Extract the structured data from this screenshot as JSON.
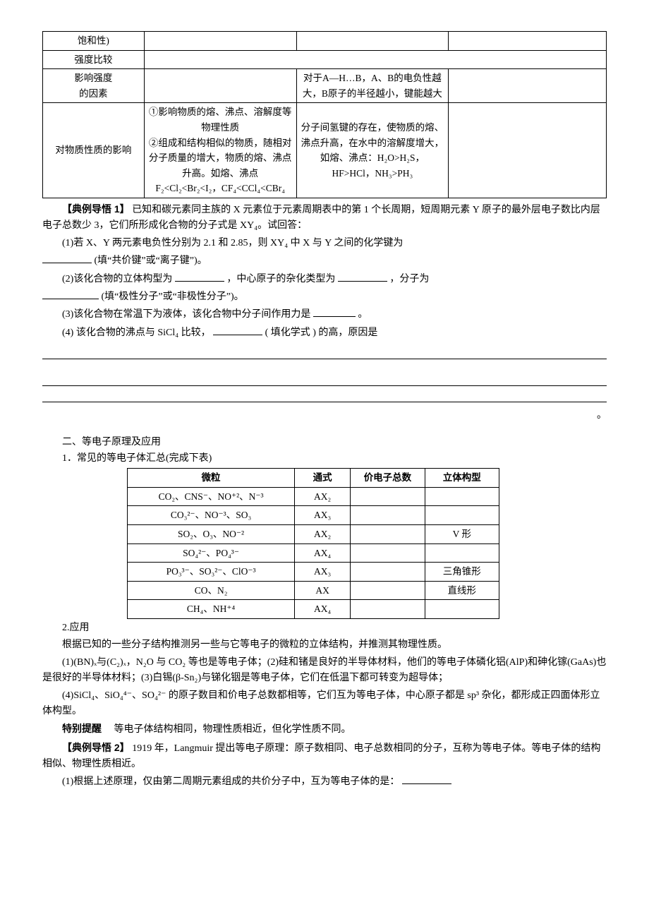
{
  "table1": {
    "rows": [
      {
        "c0": "饱和性)",
        "c1": "",
        "c2": "",
        "c3": ""
      },
      {
        "c0": "强度比较",
        "c1": "",
        "c2": "",
        "c3": ""
      },
      {
        "c0": "影响强度\n的因素",
        "c1": "",
        "c2": "对于A—H…B，A、B的电负性越大，B原子的半径越小，键能越大",
        "c3": ""
      },
      {
        "c0": "对物质性质的影响",
        "c1": "①影响物质的熔、沸点、溶解度等物理性质\n②组成和结构相似的物质，随相对分子质量的增大，物质的熔、沸点升高。如熔、沸点 F₂<Cl₂<Br₂<I₂，CF₄<CCl₄<CBr₄",
        "c2": "分子间氢键的存在，使物质的熔、沸点升高，在水中的溶解度增大，如熔、沸点：H₂O>H₂S，HF>HCl，NH₃>PH₃",
        "c3": ""
      }
    ]
  },
  "ex1": {
    "heading": "【典例导悟 1】",
    "stem_a": "已知和碳元素同主族的 X 元素位于元素周期表中的第 1 个长周期，短周期元素 Y 原子的最外层电子数比内层电子总数少 3，它们所形成化合物的分子式是 XY₄。试回答：",
    "q1a": "(1)若 X、Y 两元素电负性分别为 2.1 和 2.85，则 XY₄ 中 X 与 Y 之间的化学键为",
    "q1b": "(填“共价键”或“离子键”)。",
    "q2a": "(2)该化合物的立体构型为",
    "q2b": "，中心原子的杂化类型为",
    "q2c": "，分子为",
    "q2d": "(填“极性分子”或“非极性分子”)。",
    "q3a": "(3)该化合物在常温下为液体，该化合物中分子间作用力是",
    "q3b": "。",
    "q4a": "(4) 该化合物的沸点与 SiCl₄ 比较，",
    "q4b": "( 填化学式 ) 的高，原因是"
  },
  "sec2": {
    "title": "二、等电子原理及应用",
    "sub1": "1．常见的等电子体汇总(完成下表)"
  },
  "table2": {
    "head": [
      "微粒",
      "通式",
      "价电子总数",
      "立体构型"
    ],
    "rows": [
      {
        "c0": "CO₂、CNS⁻、NO⁺²、N⁻³",
        "c1": "AX₂",
        "c2": "",
        "c3": ""
      },
      {
        "c0": "CO₃²⁻、NO⁻³、SO₃",
        "c1": "AX₃",
        "c2": "",
        "c3": ""
      },
      {
        "c0": "SO₂、O₃、NO⁻²",
        "c1": "AX₂",
        "c2": "",
        "c3": "V 形"
      },
      {
        "c0": "SO₄²⁻、PO₄³⁻",
        "c1": "AX₄",
        "c2": "",
        "c3": ""
      },
      {
        "c0": "PO₃³⁻、SO₃²⁻、ClO⁻³",
        "c1": "AX₃",
        "c2": "",
        "c3": "三角锥形"
      },
      {
        "c0": "CO、N₂",
        "c1": "AX",
        "c2": "",
        "c3": "直线形"
      },
      {
        "c0": "CH₄、NH⁺⁴",
        "c1": "AX₄",
        "c2": "",
        "c3": ""
      }
    ]
  },
  "app": {
    "sub2": "2.应用",
    "p1": "根据已知的一些分子结构推测另一些与它等电子的微粒的立体结构，并推测其物理性质。",
    "p2": "(1)(BN)ₓ与(C₂)ₓ，N₂O 与 CO₂ 等也是等电子体；(2)硅和锗是良好的半导体材料，他们的等电子体磷化铝(AlP)和砷化镓(GaAs)也是很好的半导体材料；(3)白锡(β-Sn₂)与锑化铟是等电子体，它们在低温下都可转变为超导体；",
    "p3": "(4)SiCl₄、SiO₄⁴⁻、SO₄²⁻ 的原子数目和价电子总数都相等，它们互为等电子体，中心原子都是 sp³ 杂化，都形成正四面体形立体构型。",
    "tip_label": "特别提醒",
    "tip": "　等电子体结构相同，物理性质相近，但化学性质不同。"
  },
  "ex2": {
    "heading": "【典例导悟 2】",
    "stem": "1919 年，Langmuir 提出等电子原理：原子数相同、电子总数相同的分子，互称为等电子体。等电子体的结构相似、物理性质相近。",
    "q1": "(1)根据上述原理，仅由第二周期元素组成的共价分子中，互为等电子体的是："
  },
  "colors": {
    "text": "#000000",
    "bg": "#ffffff",
    "border": "#000000"
  }
}
